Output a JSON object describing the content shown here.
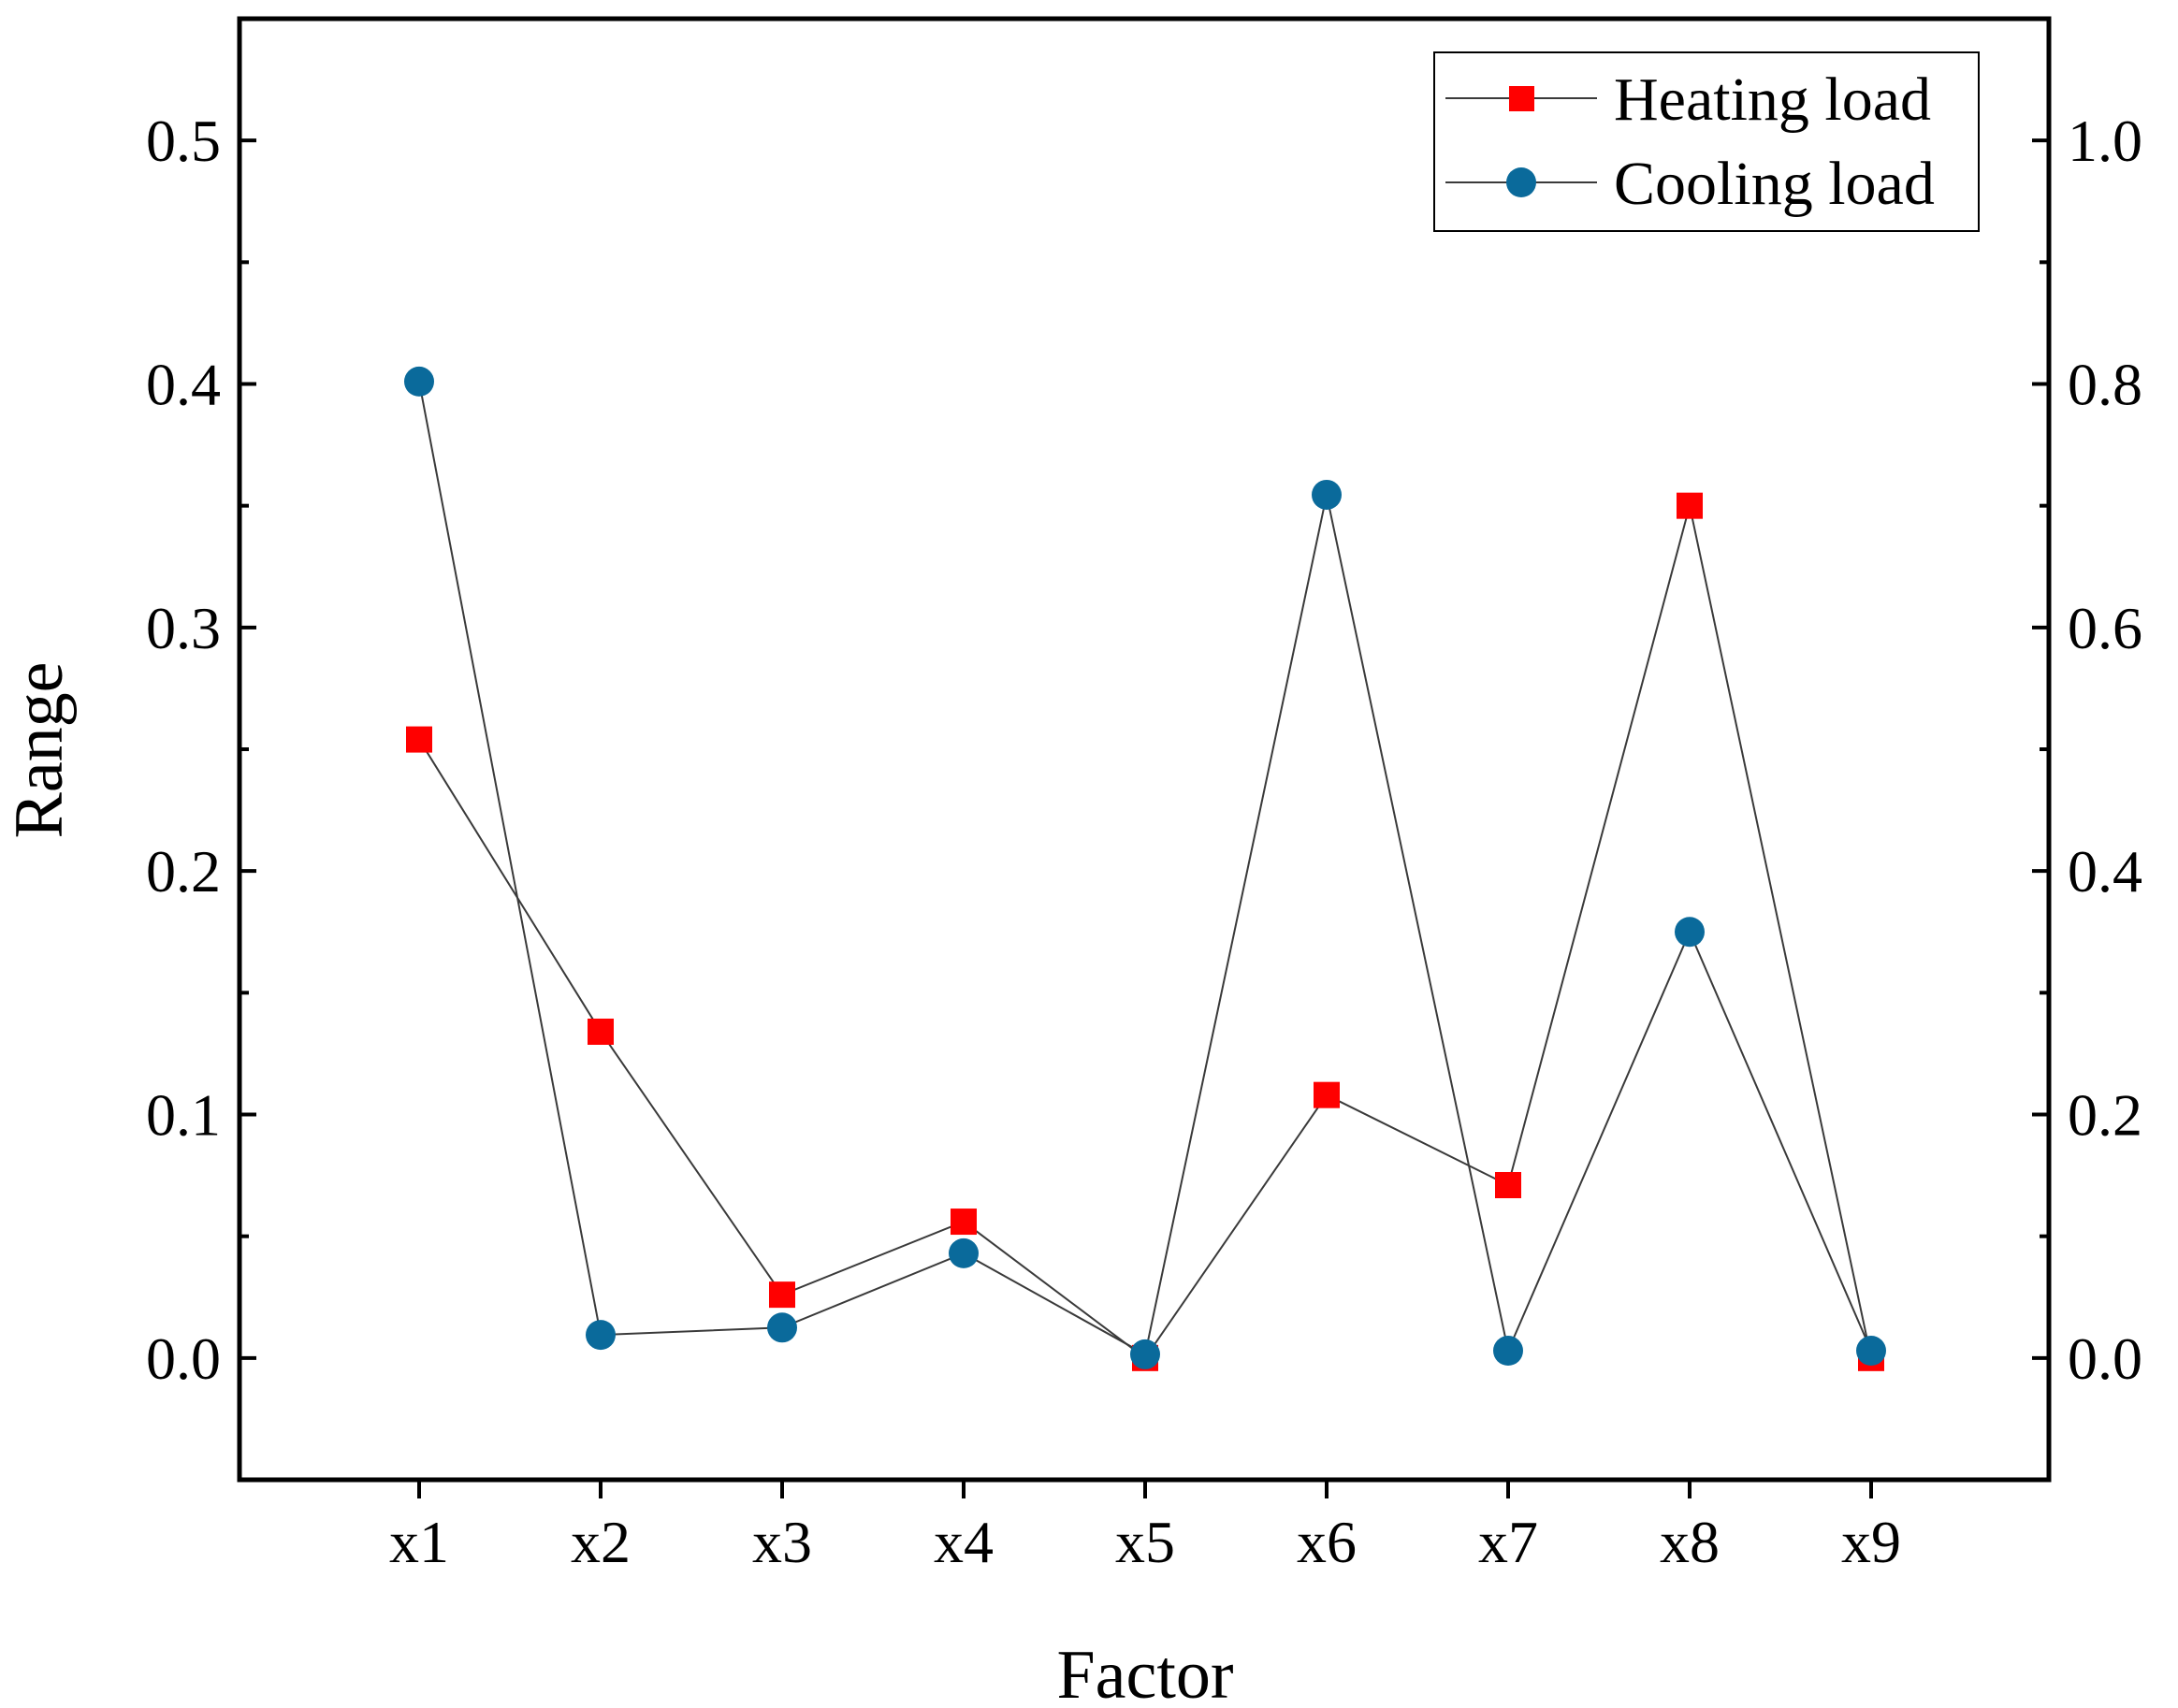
{
  "chart_data": {
    "type": "line",
    "title": "",
    "xlabel": "Factor",
    "ylabel": "Range",
    "categories": [
      "x1",
      "x2",
      "x3",
      "x4",
      "x5",
      "x6",
      "x7",
      "x8",
      "x9"
    ],
    "y_left": {
      "range": [
        -0.05,
        0.55
      ],
      "ticks": [
        0.0,
        0.1,
        0.2,
        0.3,
        0.4,
        0.5
      ],
      "tick_labels": [
        "0.0",
        "0.1",
        "0.2",
        "0.3",
        "0.4",
        "0.5"
      ]
    },
    "y_right": {
      "range": [
        -0.1,
        1.1
      ],
      "ticks": [
        0.0,
        0.2,
        0.4,
        0.6,
        0.8,
        1.0
      ],
      "tick_labels": [
        "0.0",
        "0.2",
        "0.4",
        "0.6",
        "0.8",
        "1.0"
      ]
    },
    "series": [
      {
        "name": "Heating load",
        "axis": "left",
        "marker": "square",
        "color": "#ff0000",
        "values": [
          0.254,
          0.134,
          0.026,
          0.056,
          0.0,
          0.108,
          0.071,
          0.35,
          0.0
        ]
      },
      {
        "name": "Cooling load",
        "axis": "right",
        "marker": "circle",
        "color": "#0a6a9b",
        "values": [
          0.802,
          0.019,
          0.025,
          0.086,
          0.003,
          0.709,
          0.006,
          0.35,
          0.006
        ]
      }
    ],
    "line_color": "#3a3a3a",
    "legend": {
      "position": "top-right",
      "labels": [
        "Heating load",
        "Cooling load"
      ]
    },
    "grid": false
  }
}
